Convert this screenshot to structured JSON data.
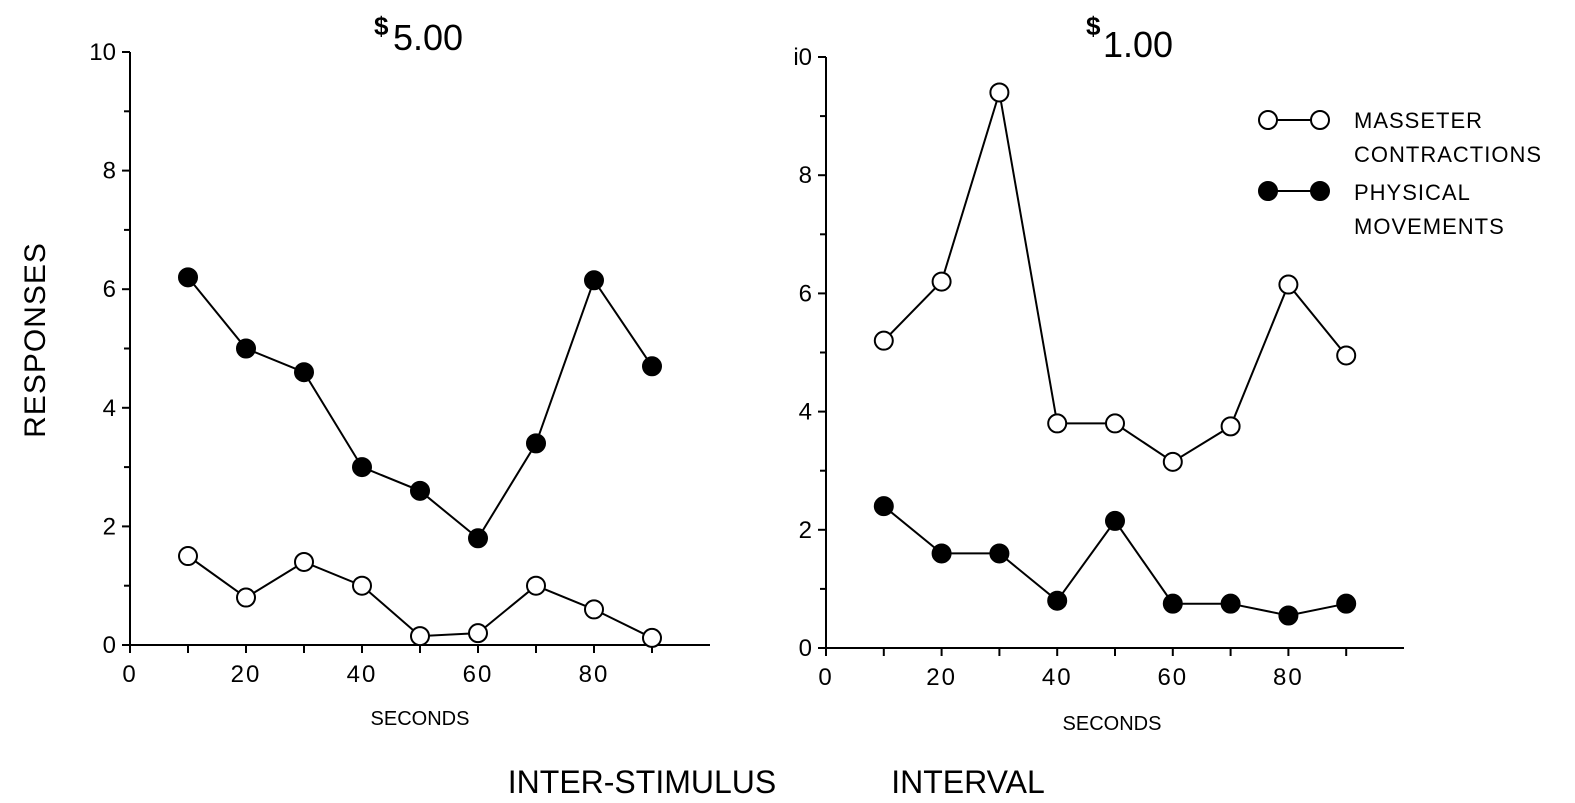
{
  "chart_data": [
    {
      "type": "line",
      "title": "$5.00",
      "title_symbol": "$",
      "title_value": "5.00",
      "xlabel": "SECONDS",
      "ylabel": "RESPONSES",
      "xlim": [
        0,
        100
      ],
      "ylim": [
        0,
        10
      ],
      "x_ticks": [
        0,
        20,
        40,
        60,
        80
      ],
      "y_ticks": [
        0,
        2,
        4,
        6,
        8,
        10
      ],
      "y_tick_labels": [
        "0",
        "2",
        "4",
        "6",
        "8",
        "10"
      ],
      "x": [
        10,
        20,
        30,
        40,
        50,
        60,
        70,
        80,
        90
      ],
      "series": [
        {
          "name": "MASSETER CONTRACTIONS",
          "marker": "open-circle",
          "values": [
            1.5,
            0.8,
            1.4,
            1.0,
            0.15,
            0.2,
            1.0,
            0.6,
            0.12
          ]
        },
        {
          "name": "PHYSICAL MOVEMENTS",
          "marker": "filled-circle",
          "values": [
            6.2,
            5.0,
            4.6,
            3.0,
            2.6,
            1.8,
            3.4,
            6.15,
            4.7
          ]
        }
      ],
      "grid": false
    },
    {
      "type": "line",
      "title": "$1.00",
      "title_symbol": "$",
      "title_value": "1.00",
      "xlabel": "SECONDS",
      "xlim": [
        0,
        100
      ],
      "ylim": [
        0,
        10
      ],
      "x_ticks": [
        0,
        20,
        40,
        60,
        80
      ],
      "y_ticks": [
        0,
        2,
        4,
        6,
        8,
        10
      ],
      "y_tick_labels": [
        "0",
        "2",
        "4",
        "6",
        "8",
        "i0"
      ],
      "x": [
        10,
        20,
        30,
        40,
        50,
        60,
        70,
        80,
        90
      ],
      "series": [
        {
          "name": "MASSETER CONTRACTIONS",
          "marker": "open-circle",
          "values": [
            5.2,
            6.2,
            9.4,
            3.8,
            3.8,
            3.15,
            3.75,
            6.15,
            4.95
          ]
        },
        {
          "name": "PHYSICAL MOVEMENTS",
          "marker": "filled-circle",
          "values": [
            2.4,
            1.6,
            1.6,
            0.8,
            2.15,
            0.75,
            0.75,
            0.55,
            0.75
          ]
        }
      ],
      "grid": false,
      "legend_placement": "top-right"
    }
  ],
  "legend": {
    "items": [
      {
        "lines": [
          "MASSETER",
          "CONTRACTIONS"
        ],
        "marker": "open-circle"
      },
      {
        "lines": [
          "PHYSICAL",
          "MOVEMENTS"
        ],
        "marker": "filled-circle"
      }
    ]
  },
  "shared_xlabel": [
    "INTER-STIMULUS",
    "INTERVAL"
  ]
}
